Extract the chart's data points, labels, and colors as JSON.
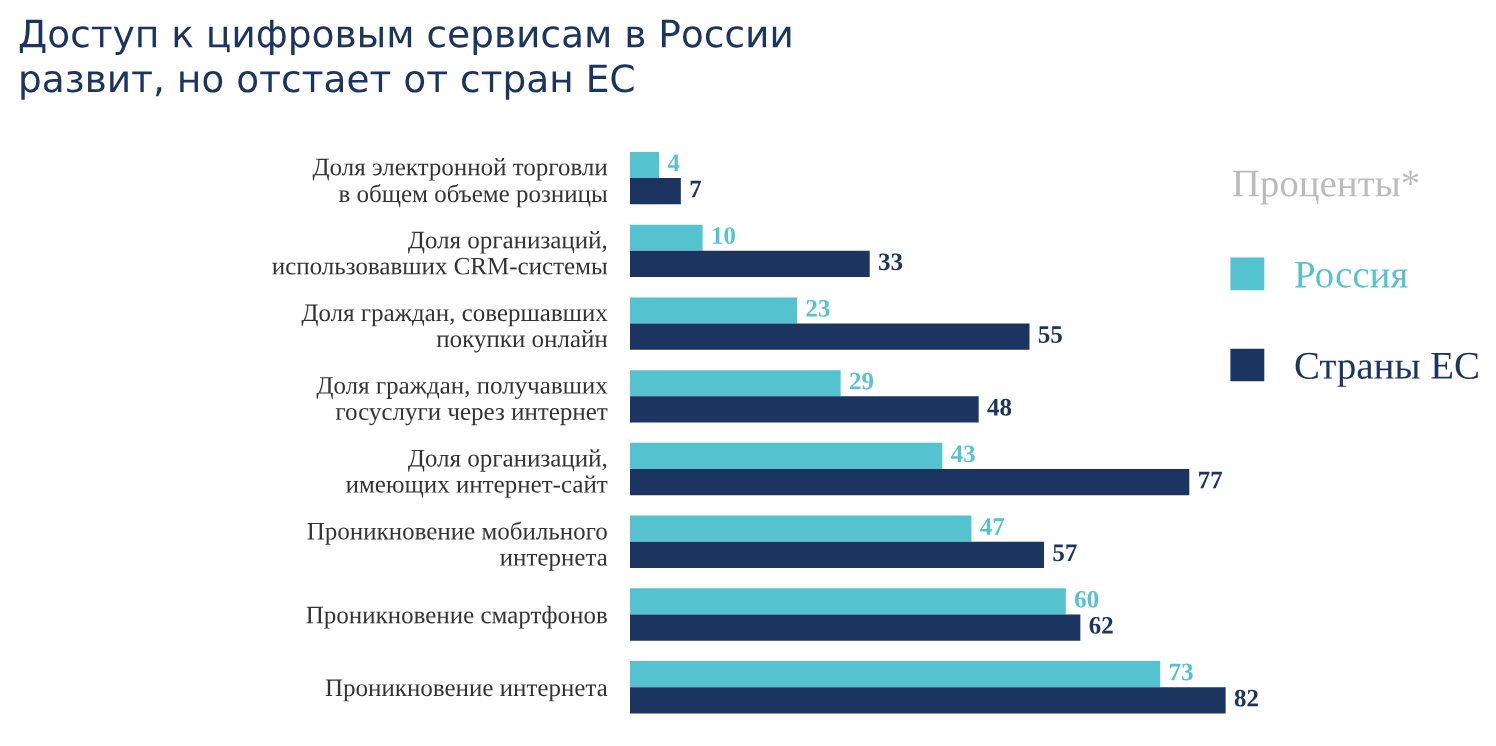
{
  "chart_data": {
    "type": "bar",
    "orientation": "horizontal",
    "title": "Доступ к цифровым сервисам в России\nразвит, но отстает от стран ЕС",
    "legend_title": "Проценты*",
    "legend": "right",
    "data_labels": true,
    "grid": false,
    "categories": [
      "Доля электронной торговли\nв общем объеме розницы",
      "Доля организаций,\nиспользовавших CRM-системы",
      "Доля граждан, совершавших\nпокупки онлайн",
      "Доля граждан, получавших\nгосуслуги через интернет",
      "Доля организаций,\nимеющих интернет-сайт",
      "Проникновение мобильного\nинтернета",
      "Проникновение смартфонов",
      "Проникновение интернета"
    ],
    "series": [
      {
        "name": "Россия",
        "color": "#55c3cf",
        "values": [
          4,
          10,
          23,
          29,
          43,
          47,
          60,
          73
        ]
      },
      {
        "name": "Страны ЕС",
        "color": "#1b3560",
        "values": [
          7,
          33,
          55,
          48,
          77,
          57,
          62,
          82
        ]
      }
    ]
  }
}
